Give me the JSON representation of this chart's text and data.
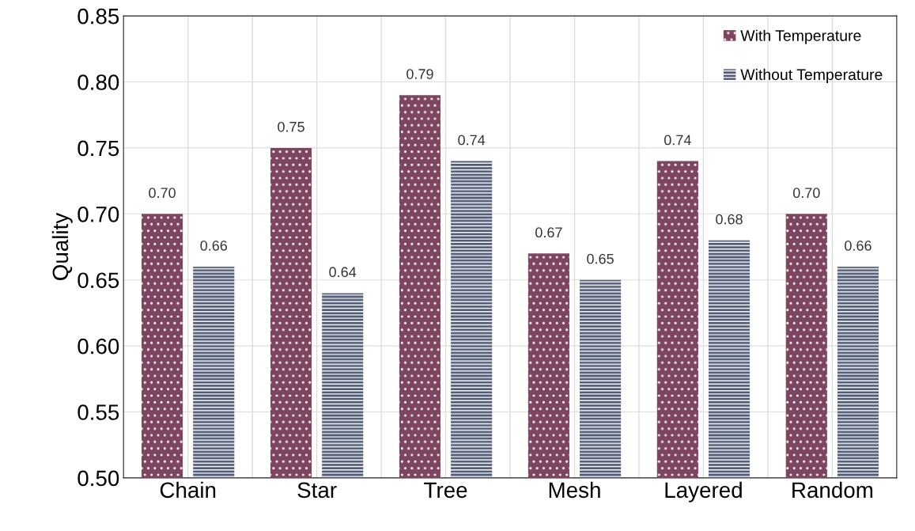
{
  "chart_data": {
    "type": "bar",
    "ylabel": "Quality",
    "categories": [
      "Chain",
      "Star",
      "Tree",
      "Mesh",
      "Layered",
      "Random"
    ],
    "series": [
      {
        "name": "With Temperature",
        "color": "#7d4560",
        "values": [
          0.7,
          0.75,
          0.79,
          0.67,
          0.74,
          0.7
        ],
        "value_labels": [
          "0.70",
          "0.75",
          "0.79",
          "0.67",
          "0.74",
          "0.70"
        ]
      },
      {
        "name": "Without Temperature",
        "color": "#4f5a74",
        "values": [
          0.66,
          0.64,
          0.74,
          0.65,
          0.68,
          0.66
        ],
        "value_labels": [
          "0.66",
          "0.64",
          "0.74",
          "0.65",
          "0.68",
          "0.66"
        ]
      }
    ],
    "ylim": [
      0.5,
      0.85
    ],
    "yticks": [
      {
        "value": 0.5,
        "label": "0.50"
      },
      {
        "value": 0.55,
        "label": "0.55"
      },
      {
        "value": 0.6,
        "label": "0.60"
      },
      {
        "value": 0.65,
        "label": "0.65"
      },
      {
        "value": 0.7,
        "label": "0.70"
      },
      {
        "value": 0.75,
        "label": "0.75"
      },
      {
        "value": 0.8,
        "label": "0.80"
      },
      {
        "value": 0.85,
        "label": "0.85"
      }
    ],
    "grid": true,
    "legend": "top right"
  }
}
